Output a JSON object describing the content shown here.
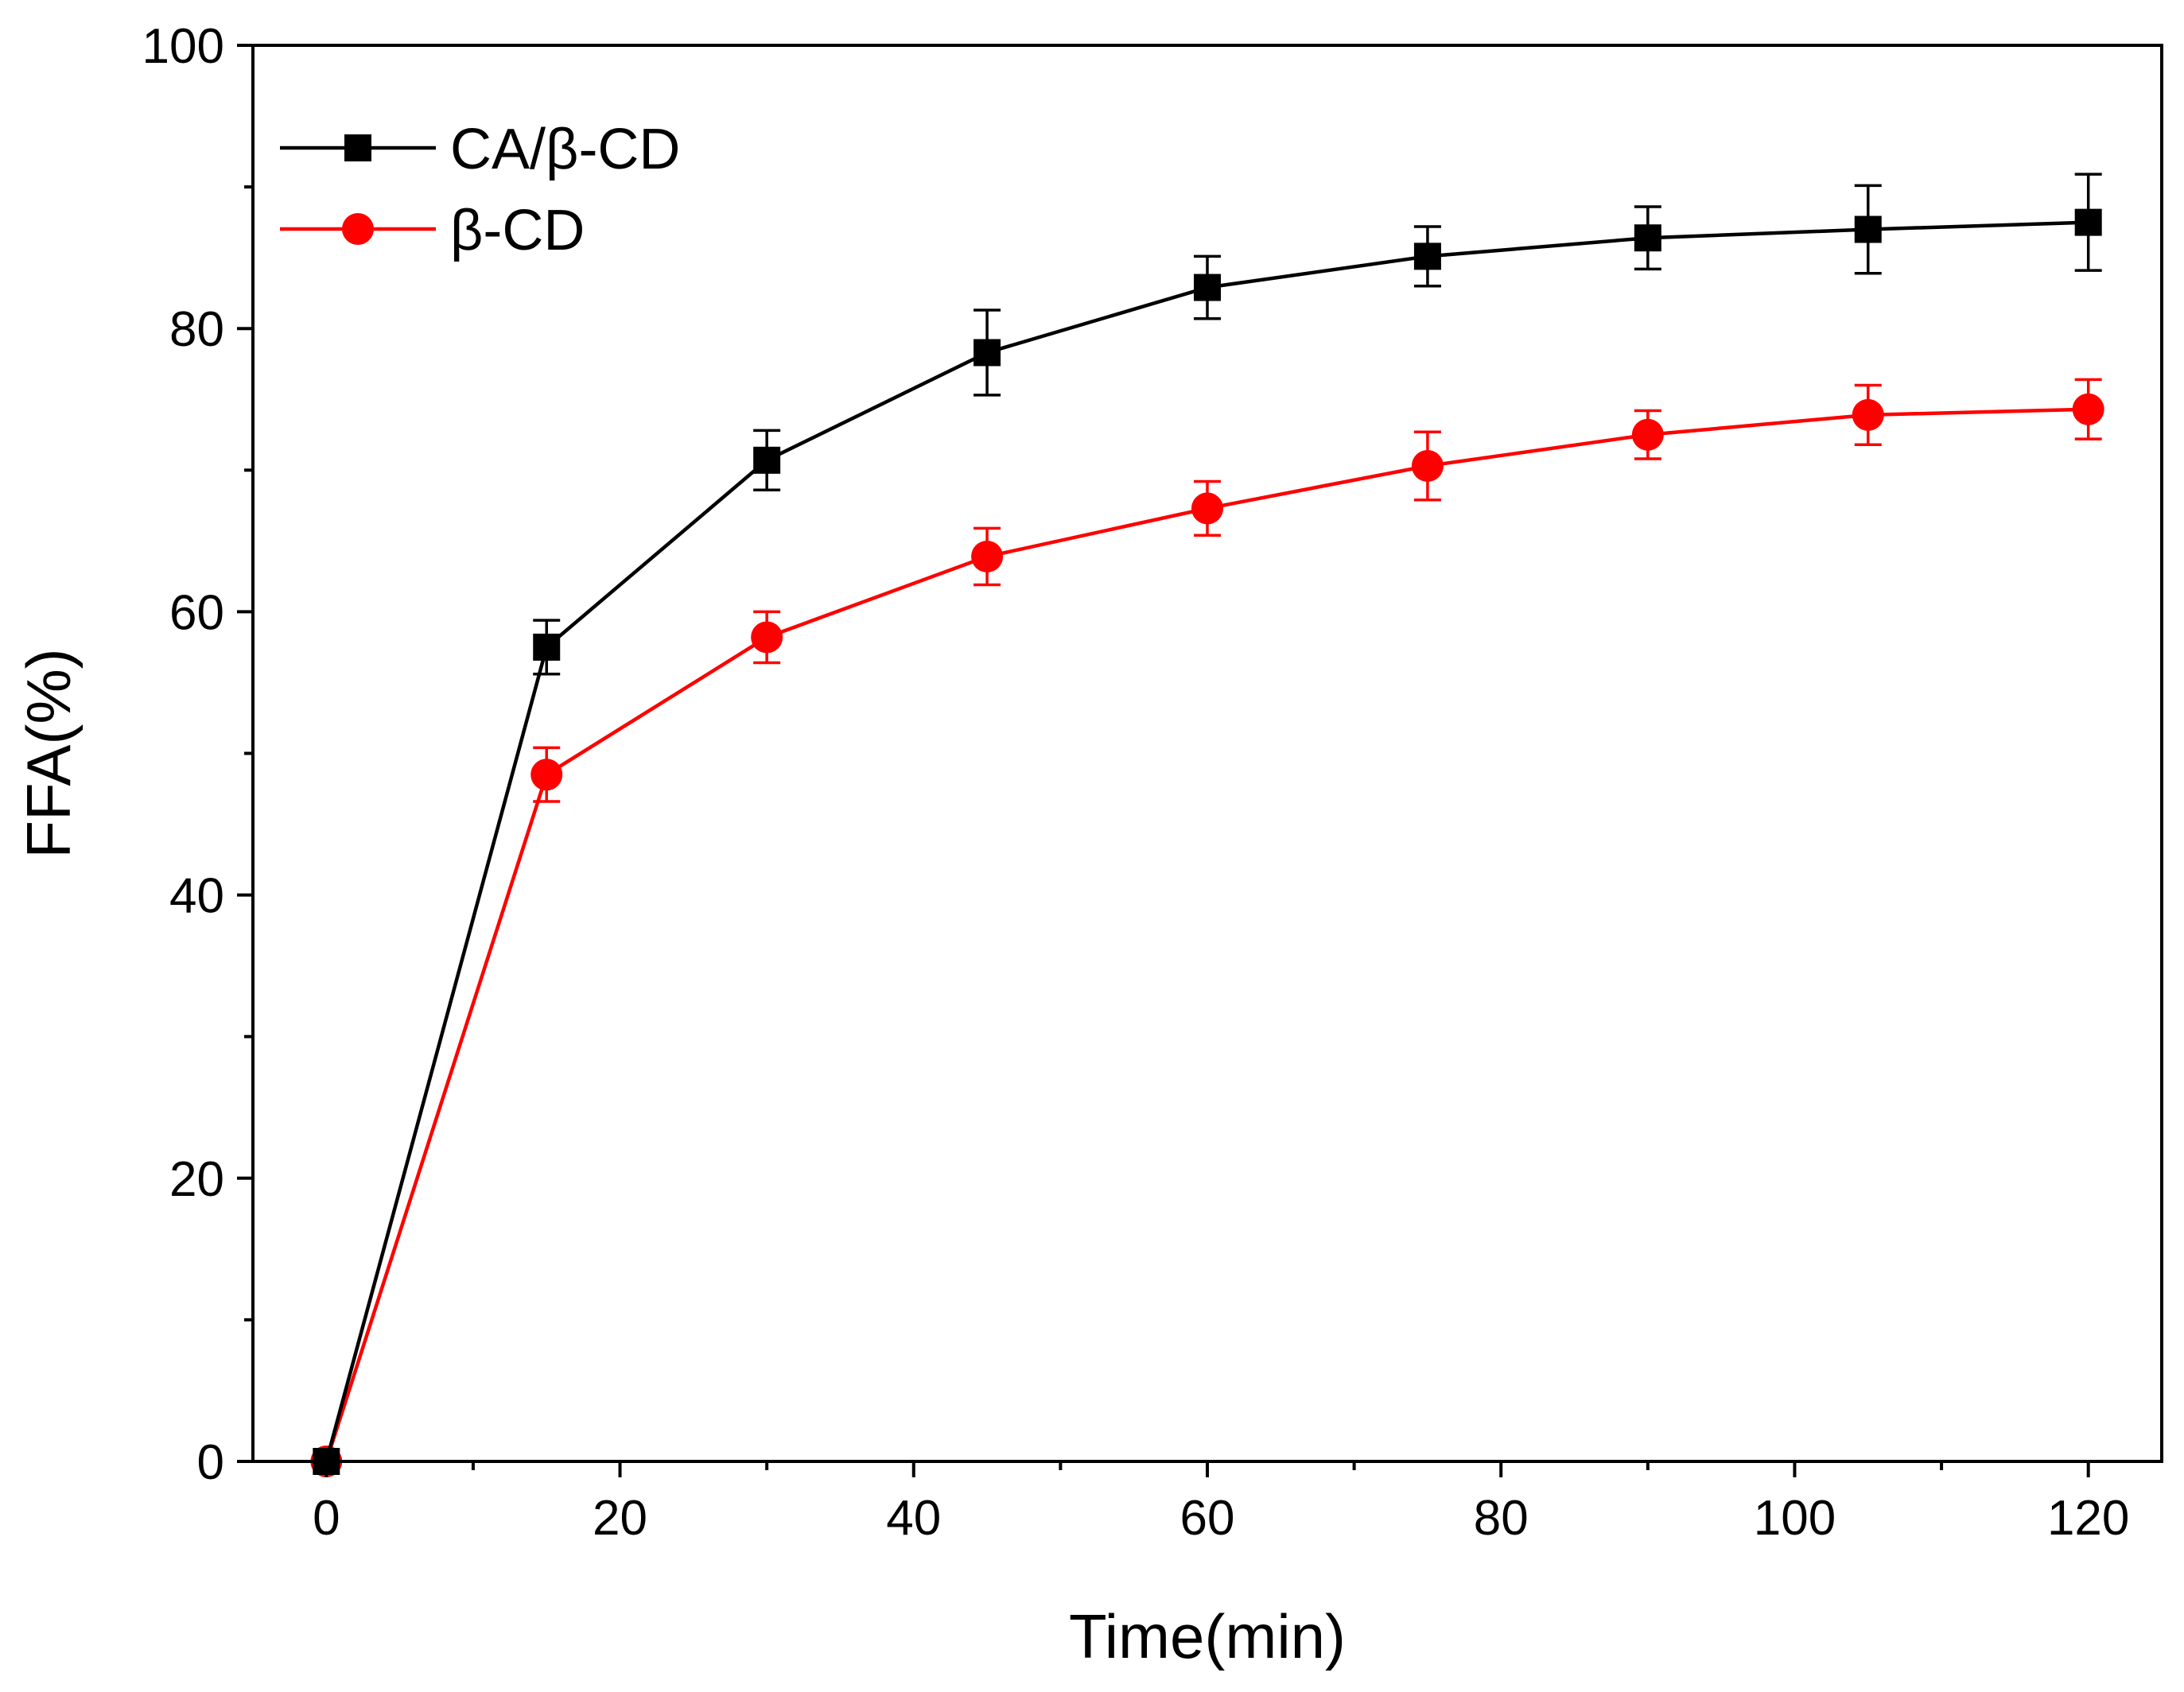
{
  "chart_data": {
    "type": "line",
    "title": "",
    "xlabel": "Time(min)",
    "ylabel": "FFA(%)",
    "xlim": [
      -5,
      125
    ],
    "ylim": [
      0,
      100
    ],
    "xticks": [
      0,
      20,
      40,
      60,
      80,
      100,
      120
    ],
    "xtick_labels": [
      "0",
      "20",
      "40",
      "60",
      "80",
      "100",
      "120"
    ],
    "yticks": [
      0,
      20,
      40,
      60,
      80,
      100
    ],
    "ytick_labels": [
      "0",
      "20",
      "40",
      "60",
      "80",
      "100"
    ],
    "x": [
      0,
      15,
      30,
      45,
      60,
      75,
      90,
      105,
      120
    ],
    "legend_position": "top-left",
    "series": [
      {
        "name": "CA/β-CD",
        "color": "#000000",
        "marker": "square",
        "values": [
          0,
          57.5,
          70.7,
          78.3,
          82.9,
          85.1,
          86.4,
          87.0,
          87.5
        ],
        "errors": [
          0,
          1.9,
          2.1,
          3.0,
          2.2,
          2.1,
          2.2,
          3.1,
          3.4
        ]
      },
      {
        "name": "β-CD",
        "color": "#ff0000",
        "marker": "circle",
        "values": [
          0,
          48.5,
          58.2,
          63.9,
          67.3,
          70.3,
          72.5,
          73.9,
          74.3
        ],
        "errors": [
          0,
          1.9,
          1.8,
          2.0,
          1.9,
          2.4,
          1.7,
          2.1,
          2.1
        ]
      }
    ]
  }
}
